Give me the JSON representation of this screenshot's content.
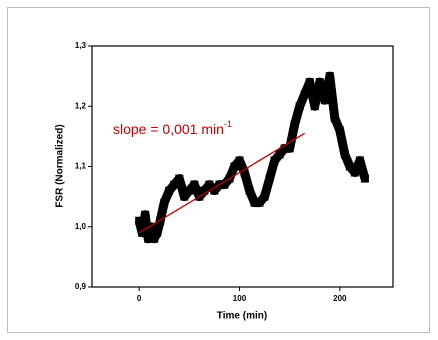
{
  "chart_data": {
    "type": "scatter",
    "x_label": "Time (min)",
    "y_label": "FSR (Normalized)",
    "xlim": [
      -47,
      253
    ],
    "xticks": [
      0,
      100,
      200
    ],
    "ylim": [
      0.9,
      1.3
    ],
    "yticks": [
      {
        "value": 0.9,
        "label": "0,9"
      },
      {
        "value": 1.0,
        "label": "1,0"
      },
      {
        "value": 1.1,
        "label": "1,1"
      },
      {
        "value": 1.2,
        "label": "1,2"
      },
      {
        "value": 1.3,
        "label": "1,3"
      }
    ],
    "series": [
      {
        "color": "#000000",
        "x": [
          0,
          3,
          6,
          9,
          12,
          15,
          18,
          21,
          25,
          30,
          35,
          40,
          45,
          50,
          55,
          60,
          65,
          70,
          75,
          80,
          85,
          90,
          95,
          100,
          105,
          110,
          115,
          120,
          125,
          130,
          135,
          140,
          145,
          150,
          155,
          160,
          165,
          170,
          175,
          180,
          185,
          190,
          195,
          200,
          205,
          210,
          215,
          220,
          225
        ],
        "values": [
          1.01,
          0.99,
          1.02,
          0.98,
          1.0,
          0.98,
          0.99,
          1.01,
          1.04,
          1.06,
          1.07,
          1.08,
          1.05,
          1.06,
          1.07,
          1.05,
          1.06,
          1.07,
          1.06,
          1.07,
          1.07,
          1.08,
          1.1,
          1.11,
          1.09,
          1.06,
          1.04,
          1.04,
          1.05,
          1.08,
          1.11,
          1.12,
          1.13,
          1.13,
          1.17,
          1.2,
          1.22,
          1.24,
          1.2,
          1.24,
          1.21,
          1.25,
          1.18,
          1.16,
          1.12,
          1.1,
          1.09,
          1.11,
          1.08
        ]
      }
    ],
    "trend_line": {
      "color": "#c00000",
      "x": [
        0,
        165
      ],
      "values": [
        0.99,
        1.155
      ]
    },
    "annotation": {
      "text": "slope = 0,001 min",
      "superscript": "-1",
      "color": "#c00000"
    }
  }
}
